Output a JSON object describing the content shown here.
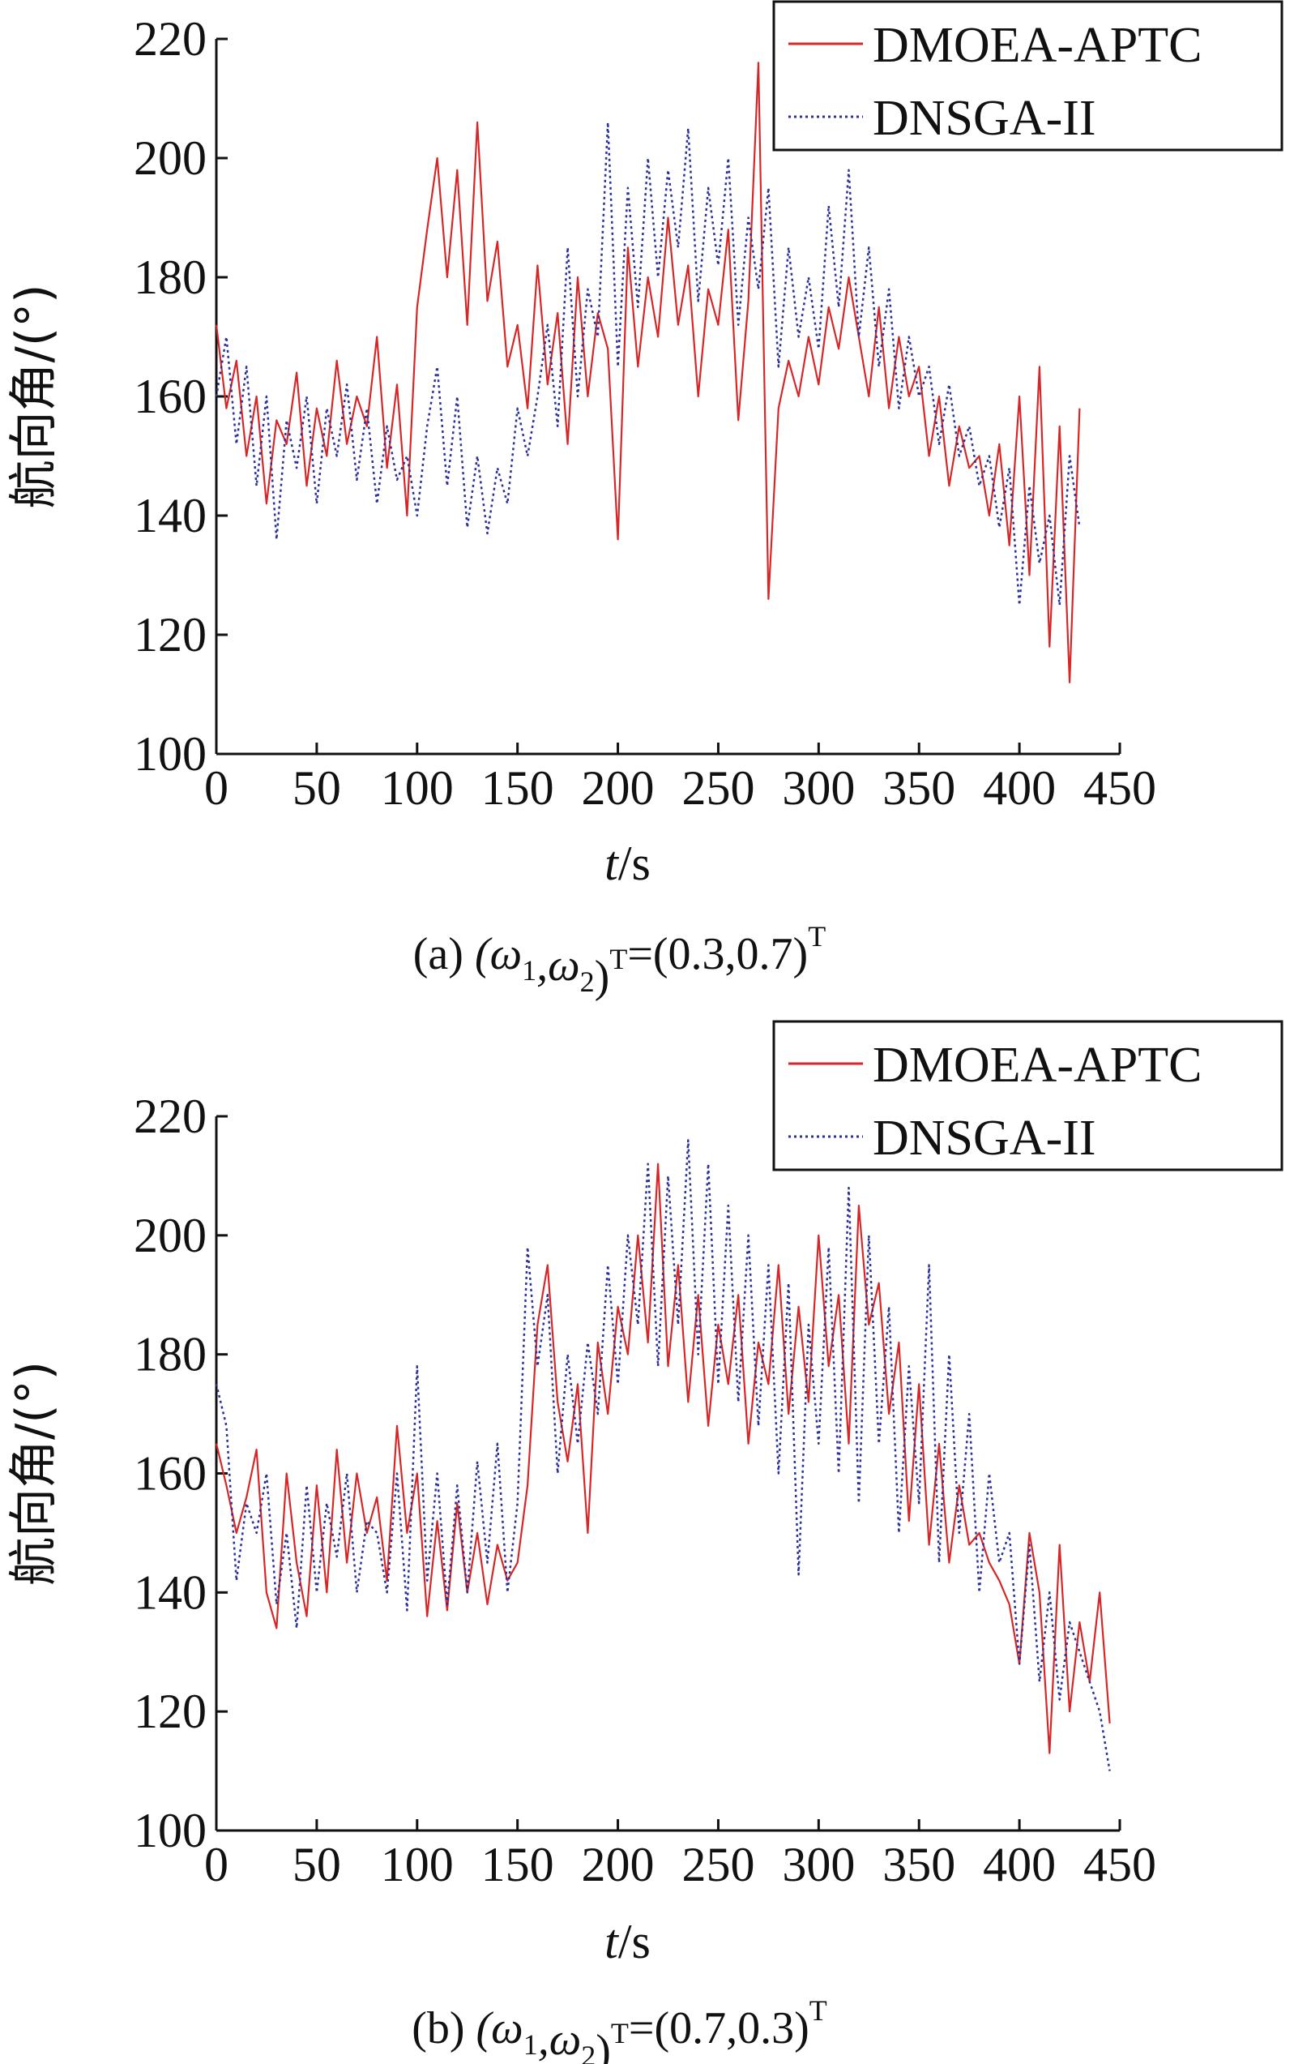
{
  "figure": {
    "panels": [
      {
        "caption": {
          "tag": "(a)",
          "lhs": "(ω",
          "sub1": "1",
          "mid": ",ω",
          "sub2": "2",
          "close": ")",
          "sup1": "T",
          "rhs": "=(0.3,0.7)",
          "sup2": "T"
        }
      },
      {
        "caption": {
          "tag": "(b)",
          "lhs": "(ω",
          "sub1": "1",
          "mid": ",ω",
          "sub2": "2",
          "close": ")",
          "sup1": "T",
          "rhs": "=(0.7,0.3)",
          "sup2": "T"
        }
      }
    ]
  },
  "chart_data": [
    {
      "type": "line",
      "xlabel": "t/s",
      "ylabel": "航向角/(°)",
      "xlim": [
        0,
        450
      ],
      "ylim": [
        100,
        220
      ],
      "xticks": [
        "0",
        "50",
        "100",
        "150",
        "200",
        "250",
        "300",
        "350",
        "400",
        "450"
      ],
      "yticks": [
        "100",
        "120",
        "140",
        "160",
        "180",
        "200",
        "220"
      ],
      "legend_position": "top-right",
      "series": [
        {
          "name": "DMOEA-APTC",
          "color": "#d62728",
          "style": "solid",
          "x": [
            0,
            5,
            10,
            15,
            20,
            25,
            30,
            35,
            40,
            45,
            50,
            55,
            60,
            65,
            70,
            75,
            80,
            85,
            90,
            95,
            100,
            105,
            110,
            115,
            120,
            125,
            130,
            135,
            140,
            145,
            150,
            155,
            160,
            165,
            170,
            175,
            180,
            185,
            190,
            195,
            200,
            205,
            210,
            215,
            220,
            225,
            230,
            235,
            240,
            245,
            250,
            255,
            260,
            265,
            270,
            275,
            280,
            285,
            290,
            295,
            300,
            305,
            310,
            315,
            320,
            325,
            330,
            335,
            340,
            345,
            350,
            355,
            360,
            365,
            370,
            375,
            380,
            385,
            390,
            395,
            400,
            405,
            410,
            415,
            420,
            425,
            430
          ],
          "y": [
            172,
            158,
            166,
            150,
            160,
            142,
            156,
            152,
            164,
            145,
            158,
            150,
            166,
            152,
            160,
            155,
            170,
            148,
            162,
            140,
            175,
            188,
            200,
            180,
            198,
            172,
            206,
            176,
            186,
            165,
            172,
            158,
            182,
            162,
            174,
            152,
            180,
            160,
            174,
            168,
            136,
            185,
            165,
            180,
            170,
            190,
            172,
            182,
            160,
            178,
            172,
            188,
            156,
            176,
            216,
            126,
            158,
            166,
            160,
            170,
            162,
            175,
            168,
            180,
            170,
            160,
            175,
            158,
            170,
            160,
            165,
            150,
            160,
            145,
            155,
            148,
            150,
            140,
            152,
            135,
            160,
            130,
            165,
            118,
            155,
            112,
            158
          ]
        },
        {
          "name": "DNSGA-II",
          "color": "#2a3199",
          "style": "dotted",
          "x": [
            0,
            5,
            10,
            15,
            20,
            25,
            30,
            35,
            40,
            45,
            50,
            55,
            60,
            65,
            70,
            75,
            80,
            85,
            90,
            95,
            100,
            105,
            110,
            115,
            120,
            125,
            130,
            135,
            140,
            145,
            150,
            155,
            160,
            165,
            170,
            175,
            180,
            185,
            190,
            195,
            200,
            205,
            210,
            215,
            220,
            225,
            230,
            235,
            240,
            245,
            250,
            255,
            260,
            265,
            270,
            275,
            280,
            285,
            290,
            295,
            300,
            305,
            310,
            315,
            320,
            325,
            330,
            335,
            340,
            345,
            350,
            355,
            360,
            365,
            370,
            375,
            380,
            385,
            390,
            395,
            400,
            405,
            410,
            415,
            420,
            425,
            430
          ],
          "y": [
            160,
            170,
            152,
            165,
            145,
            160,
            136,
            156,
            148,
            160,
            142,
            158,
            150,
            162,
            146,
            158,
            142,
            155,
            146,
            150,
            140,
            155,
            165,
            145,
            160,
            138,
            150,
            137,
            148,
            142,
            158,
            150,
            160,
            172,
            155,
            185,
            160,
            178,
            170,
            206,
            165,
            195,
            175,
            200,
            180,
            198,
            185,
            205,
            176,
            195,
            182,
            200,
            172,
            190,
            178,
            195,
            165,
            185,
            170,
            180,
            168,
            192,
            175,
            198,
            170,
            185,
            165,
            178,
            158,
            170,
            160,
            165,
            152,
            162,
            150,
            155,
            145,
            150,
            138,
            148,
            125,
            145,
            132,
            140,
            125,
            150,
            138
          ]
        }
      ]
    },
    {
      "type": "line",
      "xlabel": "t/s",
      "ylabel": "航向角/(°)",
      "xlim": [
        0,
        450
      ],
      "ylim": [
        100,
        220
      ],
      "xticks": [
        "0",
        "50",
        "100",
        "150",
        "200",
        "250",
        "300",
        "350",
        "400",
        "450"
      ],
      "yticks": [
        "100",
        "120",
        "140",
        "160",
        "180",
        "200",
        "220"
      ],
      "legend_position": "top-right",
      "series": [
        {
          "name": "DMOEA-APTC",
          "color": "#d62728",
          "style": "solid",
          "x": [
            0,
            5,
            10,
            15,
            20,
            25,
            30,
            35,
            40,
            45,
            50,
            55,
            60,
            65,
            70,
            75,
            80,
            85,
            90,
            95,
            100,
            105,
            110,
            115,
            120,
            125,
            130,
            135,
            140,
            145,
            150,
            155,
            160,
            165,
            170,
            175,
            180,
            185,
            190,
            195,
            200,
            205,
            210,
            215,
            220,
            225,
            230,
            235,
            240,
            245,
            250,
            255,
            260,
            265,
            270,
            275,
            280,
            285,
            290,
            295,
            300,
            305,
            310,
            315,
            320,
            325,
            330,
            335,
            340,
            345,
            350,
            355,
            360,
            365,
            370,
            375,
            380,
            385,
            390,
            395,
            400,
            405,
            410,
            415,
            420,
            425,
            430,
            435,
            440,
            445
          ],
          "y": [
            165,
            158,
            150,
            156,
            164,
            140,
            134,
            160,
            145,
            136,
            158,
            140,
            164,
            145,
            160,
            150,
            156,
            142,
            168,
            150,
            160,
            136,
            152,
            137,
            155,
            140,
            150,
            138,
            148,
            142,
            145,
            158,
            185,
            195,
            172,
            162,
            175,
            150,
            182,
            170,
            188,
            180,
            200,
            182,
            212,
            178,
            195,
            172,
            190,
            168,
            185,
            175,
            190,
            165,
            182,
            175,
            195,
            170,
            188,
            172,
            200,
            178,
            190,
            165,
            205,
            185,
            192,
            170,
            182,
            152,
            175,
            148,
            165,
            145,
            158,
            148,
            150,
            145,
            142,
            138,
            128,
            150,
            140,
            113,
            148,
            120,
            135,
            125,
            140,
            118
          ]
        },
        {
          "name": "DNSGA-II",
          "color": "#2a3199",
          "style": "dotted",
          "x": [
            0,
            5,
            10,
            15,
            20,
            25,
            30,
            35,
            40,
            45,
            50,
            55,
            60,
            65,
            70,
            75,
            80,
            85,
            90,
            95,
            100,
            105,
            110,
            115,
            120,
            125,
            130,
            135,
            140,
            145,
            150,
            155,
            160,
            165,
            170,
            175,
            180,
            185,
            190,
            195,
            200,
            205,
            210,
            215,
            220,
            225,
            230,
            235,
            240,
            245,
            250,
            255,
            260,
            265,
            270,
            275,
            280,
            285,
            290,
            295,
            300,
            305,
            310,
            315,
            320,
            325,
            330,
            335,
            340,
            345,
            350,
            355,
            360,
            365,
            370,
            375,
            380,
            385,
            390,
            395,
            400,
            405,
            410,
            415,
            420,
            425,
            430,
            435,
            440,
            445
          ],
          "y": [
            175,
            168,
            142,
            155,
            150,
            160,
            138,
            150,
            134,
            158,
            140,
            155,
            146,
            160,
            140,
            152,
            150,
            140,
            160,
            137,
            178,
            142,
            160,
            138,
            158,
            140,
            162,
            145,
            165,
            140,
            155,
            198,
            178,
            190,
            160,
            180,
            165,
            182,
            170,
            195,
            175,
            200,
            185,
            212,
            178,
            210,
            185,
            216,
            180,
            212,
            175,
            205,
            172,
            200,
            168,
            195,
            160,
            192,
            143,
            185,
            165,
            198,
            160,
            208,
            155,
            200,
            165,
            188,
            150,
            178,
            155,
            195,
            145,
            180,
            150,
            170,
            140,
            160,
            145,
            150,
            128,
            148,
            125,
            140,
            122,
            135,
            130,
            125,
            120,
            110
          ]
        }
      ]
    }
  ]
}
